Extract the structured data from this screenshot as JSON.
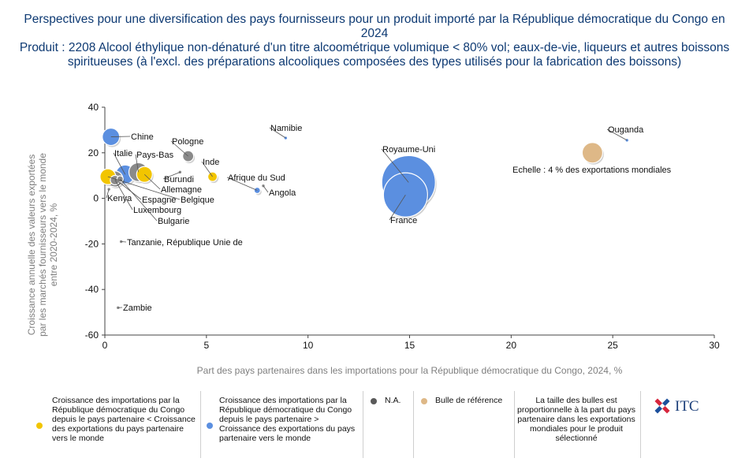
{
  "title": {
    "line1": "Perspectives pour une diversification des pays fournisseurs pour un produit importé par la République démocratique du Congo en 2024",
    "line2": "Produit : 2208 Alcool éthylique non-dénaturé d'un titre alcoométrique volumique < 80% vol; eaux-de-vie, liqueurs et autres boissons spiritueuses (à l'excl. des préparations alcooliques composées des types utilisés pour la fabrication des boissons)"
  },
  "chart_data": {
    "type": "scatter",
    "xlabel": "Part des pays partenaires dans les importations pour la République démocratique du Congo, 2024, %",
    "ylabel": "Croissance annuelle des valeurs exportées par les marchés fournisseurs vers le monde entre 2020-2024, %",
    "xlim": [
      0,
      30
    ],
    "ylim": [
      -60,
      40
    ],
    "x_ticks": [
      "0",
      "5",
      "10",
      "15",
      "20",
      "25",
      "30"
    ],
    "y_ticks": [
      "40",
      "20",
      "0",
      "-20",
      "-40",
      "-60"
    ],
    "grid": false,
    "colors": {
      "yellow": "#f2c500",
      "blue": "#5b8fe0",
      "gray": "#8a8a8a",
      "reference": "#deb887"
    },
    "points": [
      {
        "name": "Chine",
        "x": 0.3,
        "y": 27,
        "color": "blue",
        "size": 11
      },
      {
        "name": "Italie",
        "x": 1.0,
        "y": 10.5,
        "color": "blue",
        "size": 12
      },
      {
        "name": "Pays-Bas",
        "x": 1.65,
        "y": 11.5,
        "color": "gray",
        "size": 12
      },
      {
        "name": "Pologne",
        "x": 4.1,
        "y": 18.5,
        "color": "gray",
        "size": 7
      },
      {
        "name": "Inde",
        "x": 5.3,
        "y": 9.5,
        "color": "yellow",
        "size": 6
      },
      {
        "name": "Burundi",
        "x": 3.7,
        "y": 11.5,
        "color": "gray",
        "size": 2
      },
      {
        "name": "Allemagne",
        "x": 1.95,
        "y": 10.5,
        "color": "yellow",
        "size": 10
      },
      {
        "name": "Espagne",
        "x": 0.5,
        "y": 8.5,
        "color": "gray",
        "size": 10
      },
      {
        "name": "Belgique",
        "x": 0.15,
        "y": 9.5,
        "color": "yellow",
        "size": 10
      },
      {
        "name": "Kenya",
        "x": 0.2,
        "y": 4,
        "color": "gray",
        "size": 2
      },
      {
        "name": "Luxembourg",
        "x": 0.5,
        "y": 8,
        "color": "gray",
        "size": 6
      },
      {
        "name": "Bulgarie",
        "x": 0.75,
        "y": 8.5,
        "color": "gray",
        "size": 4
      },
      {
        "name": "Afrique du Sud",
        "x": 7.5,
        "y": 3.5,
        "color": "blue",
        "size": 4
      },
      {
        "name": "Angola",
        "x": 7.8,
        "y": 5.5,
        "color": "gray",
        "size": 2
      },
      {
        "name": "Namibie",
        "x": 8.9,
        "y": 26.5,
        "color": "blue",
        "size": 2
      },
      {
        "name": "Royaume-Uni",
        "x": 14.95,
        "y": 7,
        "color": "blue",
        "size": 34
      },
      {
        "name": "France",
        "x": 14.8,
        "y": 1.5,
        "color": "blue",
        "size": 28
      },
      {
        "name": "Ouganda",
        "x": 25.7,
        "y": 25.5,
        "color": "blue",
        "size": 2
      },
      {
        "name": "Tanzanie, République Unie de",
        "x": 0.8,
        "y": -19,
        "color": "gray",
        "size": 2
      },
      {
        "name": "Zambie",
        "x": 0.65,
        "y": -48,
        "color": "gray",
        "size": 2
      }
    ],
    "reference": {
      "x": 24,
      "y": 20,
      "size": 13,
      "label": "Echelle : 4 % des exportations mondiales"
    },
    "legend": {
      "yellow_text": "Croissance des importations par la République démocratique du Congo depuis le pays partenaire < Croissance des exportations du pays partenaire vers le monde",
      "blue_text": "Croissance des importations par la République démocratique du Congo depuis le pays partenaire > Croissance des exportations du pays partenaire vers le monde",
      "na_text": "N.A.",
      "reference_text": "Bulle de référence",
      "size_note": "La taille des bulles est proportionnelle à la part du pays partenaire dans les exportations mondiales pour le produit sélectionné"
    }
  },
  "logo": {
    "text": "ITC"
  }
}
